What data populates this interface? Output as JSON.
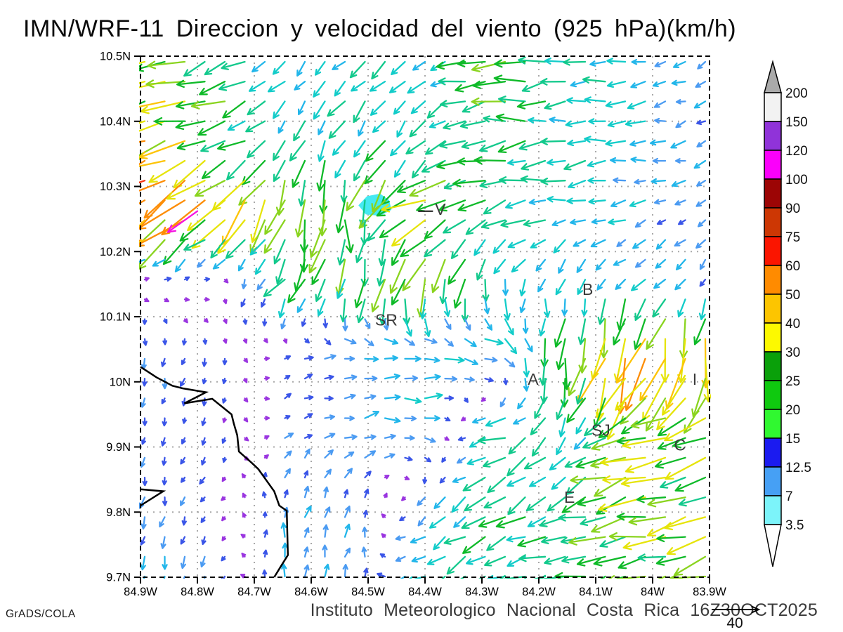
{
  "title": "IMN/WRF-11 Direccion y velocidad del viento (925 hPa)(km/h)",
  "caption": "Instituto Meteorologico Nacional Costa Rica  16Z30OCT2025",
  "credit": "GrADS/COLA",
  "reference_vector": {
    "value": "40"
  },
  "chart_data": {
    "type": "vector-field-map",
    "variable": "wind direction and speed",
    "level": "925 hPa",
    "units": "km/h",
    "lon_range": [
      -84.9,
      -83.9
    ],
    "lat_range": [
      9.7,
      10.5
    ],
    "x_ticks": [
      "84.9W",
      "84.8W",
      "84.7W",
      "84.6W",
      "84.5W",
      "84.4W",
      "84.3W",
      "84.2W",
      "84.1W",
      "84W",
      "83.9W"
    ],
    "y_ticks": [
      "10.5N",
      "10.4N",
      "10.3N",
      "10.2N",
      "10.1N",
      "10N",
      "9.9N",
      "9.8N",
      "9.7N"
    ],
    "grid": "dotted 0.1 degree",
    "colorbar": {
      "labels": [
        "200",
        "150",
        "120",
        "100",
        "90",
        "75",
        "60",
        "50",
        "40",
        "30",
        "25",
        "20",
        "15",
        "12.5",
        "7",
        "3.5"
      ],
      "band_colors_top_to_bottom": [
        "#f2f2f2",
        "#9033d9",
        "#fb00fb",
        "#9c0505",
        "#cd3704",
        "#fb1500",
        "#ff8b00",
        "#fdc500",
        "#fdf900",
        "#0aa00a",
        "#0fc90f",
        "#30f830",
        "#1b1bf0",
        "#46a0f5",
        "#7cf4fa"
      ],
      "above_color": "#aaaaaa",
      "below_color": "#ffffff"
    },
    "stations": [
      {
        "label": "V",
        "lon": -84.373,
        "lat": 10.265
      },
      {
        "label": "SR",
        "lon": -84.468,
        "lat": 10.095
      },
      {
        "label": "B",
        "lon": -84.114,
        "lat": 10.142
      },
      {
        "label": "A",
        "lon": -84.21,
        "lat": 10.004
      },
      {
        "label": "I",
        "lon": -83.926,
        "lat": 10.004
      },
      {
        "label": "SJ",
        "lon": -84.091,
        "lat": 9.926
      },
      {
        "label": "C",
        "lon": -83.952,
        "lat": 9.903
      },
      {
        "label": "E",
        "lon": -84.146,
        "lat": 9.823
      }
    ],
    "station_dash": {
      "lon1": -84.412,
      "lat1": 10.262,
      "lon2": -84.386,
      "lat2": 10.262
    },
    "shaded_patch": {
      "color": "#45e9f2",
      "polygon_lonlat": [
        [
          -84.517,
          10.271
        ],
        [
          -84.502,
          10.285
        ],
        [
          -84.479,
          10.289
        ],
        [
          -84.463,
          10.279
        ],
        [
          -84.459,
          10.264
        ],
        [
          -84.479,
          10.255
        ],
        [
          -84.504,
          10.257
        ]
      ]
    },
    "coastline_lonlat": [
      [
        -84.9,
        10.023
      ],
      [
        -84.872,
        10.007
      ],
      [
        -84.844,
        9.994
      ],
      [
        -84.826,
        9.99
      ],
      [
        -84.785,
        9.984
      ],
      [
        -84.823,
        9.967
      ],
      [
        -84.774,
        9.974
      ],
      [
        -84.74,
        9.95
      ],
      [
        -84.736,
        9.936
      ],
      [
        -84.73,
        9.918
      ],
      [
        -84.727,
        9.893
      ],
      [
        -84.705,
        9.876
      ],
      [
        -84.693,
        9.866
      ],
      [
        -84.665,
        9.832
      ],
      [
        -84.656,
        9.81
      ],
      [
        -84.643,
        9.802
      ],
      [
        -84.641,
        9.734
      ],
      [
        -84.651,
        9.72
      ],
      [
        -84.665,
        9.7
      ]
    ],
    "coastline_spit_lonlat": [
      [
        -84.9,
        9.835
      ],
      [
        -84.86,
        9.832
      ],
      [
        -84.9,
        9.81
      ]
    ],
    "wind_field": {
      "comment": "coarse sample grid of wind vectors read from the plot; u eastward km/h, v northward km/h; rows ordered north to south",
      "lons": [
        -84.9,
        -84.775,
        -84.65,
        -84.525,
        -84.4,
        -84.275,
        -84.15,
        -84.025,
        -83.9
      ],
      "lats": [
        10.5,
        10.386,
        10.271,
        10.157,
        10.043,
        9.929,
        9.814,
        9.7
      ],
      "u": [
        [
          -30,
          -22,
          -8,
          -9,
          -10,
          -26,
          -16,
          -12,
          -5
        ],
        [
          -38,
          -26,
          -9,
          -10,
          -10,
          -20,
          -15,
          -13,
          -8
        ],
        [
          -52,
          -34,
          -6,
          -2,
          -28,
          -20,
          -15,
          -10,
          -7
        ],
        [
          4,
          4,
          -10,
          -4,
          -6,
          -4,
          -3,
          -8,
          -3
        ],
        [
          -2,
          -1,
          4,
          10,
          13,
          14,
          -4,
          -14,
          -5
        ],
        [
          -1,
          -2,
          5,
          10,
          12,
          -18,
          -4,
          -25,
          -30
        ],
        [
          -1,
          -3,
          1,
          4,
          -6,
          -16,
          -20,
          -30,
          -26
        ],
        [
          -2,
          -2,
          1,
          2,
          -14,
          -17,
          -18,
          -24,
          -26
        ]
      ],
      "v": [
        [
          -8,
          -10,
          -8,
          -10,
          -8,
          -1,
          -2,
          -3,
          -4
        ],
        [
          -6,
          -8,
          -11,
          -13,
          -13,
          -3,
          -2,
          -2,
          -3
        ],
        [
          -35,
          -24,
          -26,
          -27,
          -13,
          -6,
          -3,
          -2,
          -3
        ],
        [
          2,
          1,
          -14,
          -22,
          -24,
          -16,
          -11,
          -8,
          -8
        ],
        [
          -8,
          -5,
          1,
          1,
          -1,
          -3,
          -28,
          -46,
          -36
        ],
        [
          -5,
          -5,
          3,
          2,
          0,
          -4,
          -14,
          -8,
          -9
        ],
        [
          -8,
          -4,
          8,
          7,
          -6,
          -10,
          -8,
          -6,
          -9
        ],
        [
          -9,
          -8,
          10,
          10,
          -8,
          -8,
          -4,
          -7,
          -6
        ]
      ],
      "extra_arrows": [
        {
          "lon": -84.8,
          "lat": 10.262,
          "u": -24,
          "v": -17,
          "speed_override": 105
        }
      ]
    },
    "render": {
      "speed_colors": [
        [
          3.5,
          "#9a35e0"
        ],
        [
          7,
          "#3a55e8"
        ],
        [
          10,
          "#4b9bf2"
        ],
        [
          13,
          "#22b6ea"
        ],
        [
          17,
          "#12ccc9"
        ],
        [
          22,
          "#12c98c"
        ],
        [
          27,
          "#0eba28"
        ],
        [
          33,
          "#8ad41f"
        ],
        [
          39,
          "#e6e409"
        ],
        [
          46,
          "#fdc407"
        ],
        [
          54,
          "#fd8d05"
        ],
        [
          64,
          "#f63613"
        ],
        [
          78,
          "#cd3a0a"
        ],
        [
          94,
          "#a30808"
        ],
        [
          114,
          "#f513e2"
        ],
        [
          150,
          "#8f2ed8"
        ],
        [
          9999,
          "#e8e8e8"
        ]
      ]
    }
  }
}
